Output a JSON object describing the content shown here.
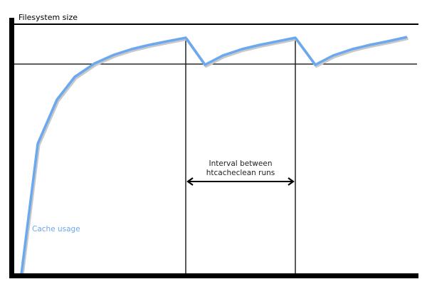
{
  "labels": {
    "y_axis": "Filesystem size",
    "series": "Cache usage",
    "interval_line1": "Interval between",
    "interval_line2": "htcacheclean runs"
  },
  "colors": {
    "curve": "#6aa8f0",
    "curve_shadow": "#c8c8c8",
    "lines": "#000000"
  }
}
